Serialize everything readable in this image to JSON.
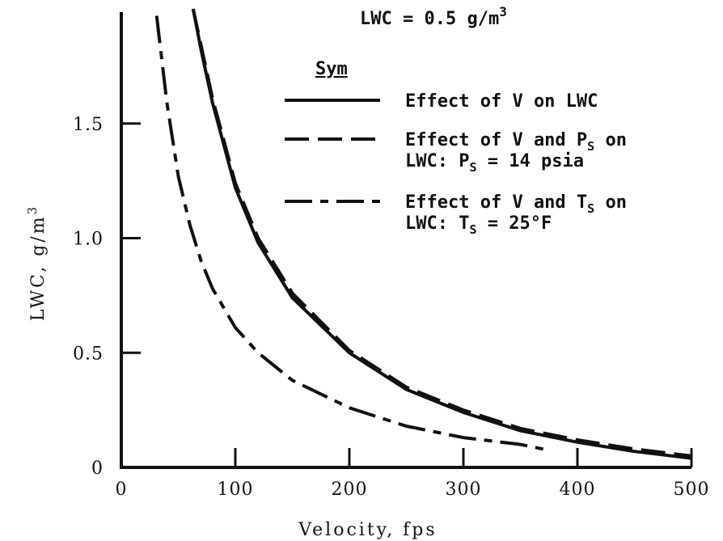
{
  "chart_data": {
    "type": "line",
    "xlabel": "Velocity, fps",
    "ylabel": "LWC, g/m",
    "ylabel_sup": "3",
    "xlim": [
      0,
      500
    ],
    "ylim": [
      0,
      2.0
    ],
    "x_ticks": [
      {
        "value": 0,
        "label": "0"
      },
      {
        "value": 100,
        "label": "100"
      },
      {
        "value": 200,
        "label": "200"
      },
      {
        "value": 300,
        "label": "300"
      },
      {
        "value": 400,
        "label": "400"
      },
      {
        "value": 500,
        "label": "500"
      }
    ],
    "y_ticks": [
      {
        "value": 0,
        "label": "0"
      },
      {
        "value": 0.5,
        "label": "0.5"
      },
      {
        "value": 1.0,
        "label": "1.0"
      },
      {
        "value": 1.5,
        "label": "1.5"
      }
    ],
    "grid": false,
    "condition": {
      "text": "LWC = 0.5 g/m",
      "sup": "3"
    },
    "legend": {
      "heading": "Sym",
      "placement": "top-right",
      "entries": [
        {
          "lines": [
            "Effect of V on LWC"
          ],
          "style": "solid"
        },
        {
          "lines": [
            "Effect of V and P{S} on",
            "LWC:  P{S} = 14 psia"
          ],
          "style": "dashed"
        },
        {
          "lines": [
            "Effect of V and T{S} on",
            "LWC:  T{S} = 25°F"
          ],
          "style": "dashdot"
        }
      ]
    },
    "series": [
      {
        "style": "solid",
        "x": [
          63,
          70,
          80,
          100,
          120,
          150,
          200,
          250,
          300,
          350,
          400,
          450,
          500
        ],
        "y": [
          2.0,
          1.82,
          1.59,
          1.22,
          0.98,
          0.74,
          0.5,
          0.34,
          0.24,
          0.16,
          0.11,
          0.07,
          0.04
        ]
      },
      {
        "style": "dashed",
        "x": [
          63,
          70,
          80,
          100,
          120,
          150,
          200,
          250,
          300,
          350,
          400,
          450,
          500
        ],
        "y": [
          2.0,
          1.84,
          1.61,
          1.24,
          1.0,
          0.76,
          0.51,
          0.35,
          0.25,
          0.17,
          0.12,
          0.08,
          0.05
        ]
      },
      {
        "style": "dashdot",
        "x": [
          31,
          40,
          50,
          60,
          70,
          80,
          100,
          120,
          150,
          200,
          250,
          300,
          350,
          370
        ],
        "y": [
          1.97,
          1.59,
          1.27,
          1.06,
          0.9,
          0.78,
          0.61,
          0.5,
          0.38,
          0.26,
          0.18,
          0.13,
          0.1,
          0.08
        ]
      }
    ]
  }
}
